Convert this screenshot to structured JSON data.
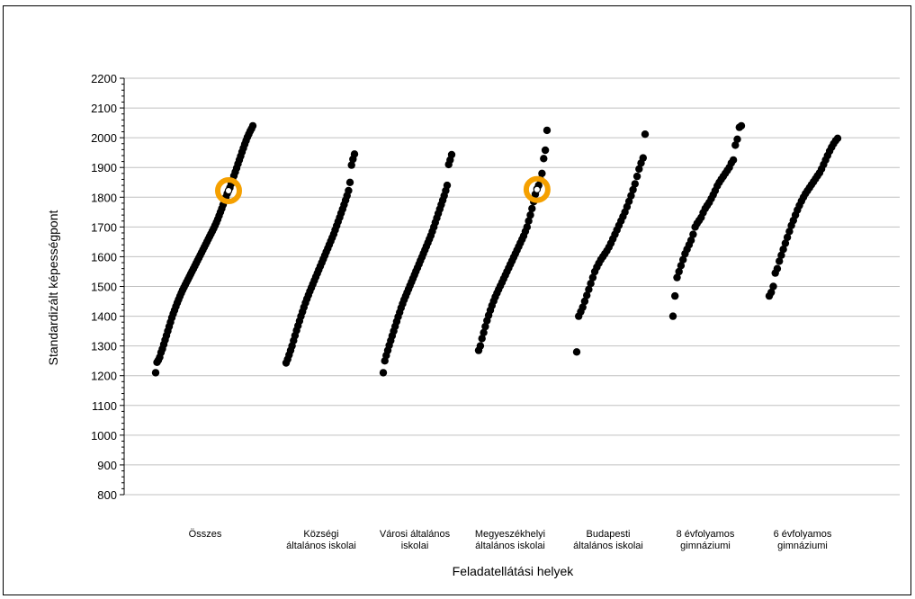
{
  "chart_data": {
    "type": "scatter",
    "title": "",
    "xlabel": "Feladatellátási helyek",
    "ylabel": "Standardizált képességpont",
    "ylim": [
      800,
      2200
    ],
    "yticks": [
      800,
      900,
      1000,
      1100,
      1200,
      1300,
      1400,
      1500,
      1600,
      1700,
      1800,
      1900,
      2000,
      2100,
      2200
    ],
    "grid": true,
    "legend": "none",
    "colors": {
      "points": "#000000",
      "highlight": "#f5a000",
      "grid": "#c0c0c0"
    },
    "categories": [
      {
        "label_lines": [
          "Összes"
        ]
      },
      {
        "label_lines": [
          "Községi",
          "általános iskolai"
        ]
      },
      {
        "label_lines": [
          "Városi általános",
          "iskolai"
        ]
      },
      {
        "label_lines": [
          "Megyeszékhelyi",
          "általános iskolai"
        ]
      },
      {
        "label_lines": [
          "Budapesti",
          "általános iskolai"
        ]
      },
      {
        "label_lines": [
          "8 évfolyamos",
          "gimnáziumi"
        ]
      },
      {
        "label_lines": [
          "6 évfolyamos",
          "gimnáziumi"
        ]
      }
    ],
    "series": [
      {
        "category_index": 0,
        "values": [
          1210,
          1245,
          1252,
          1262,
          1278,
          1290,
          1305,
          1320,
          1335,
          1350,
          1365,
          1380,
          1395,
          1408,
          1420,
          1433,
          1445,
          1456,
          1467,
          1478,
          1488,
          1497,
          1506,
          1515,
          1524,
          1533,
          1542,
          1551,
          1560,
          1569,
          1578,
          1587,
          1596,
          1605,
          1614,
          1623,
          1632,
          1641,
          1650,
          1659,
          1668,
          1677,
          1686,
          1695,
          1705,
          1715,
          1726,
          1738,
          1750,
          1762,
          1775,
          1788,
          1800,
          1812,
          1822,
          1832,
          1845,
          1858,
          1872,
          1885,
          1898,
          1912,
          1925,
          1938,
          1952,
          1965,
          1978,
          1990,
          2002,
          2012,
          2022,
          2030,
          2040
        ]
      },
      {
        "category_index": 1,
        "values": [
          1243,
          1255,
          1270,
          1285,
          1300,
          1318,
          1335,
          1352,
          1368,
          1384,
          1400,
          1415,
          1430,
          1445,
          1458,
          1471,
          1484,
          1496,
          1508,
          1520,
          1532,
          1544,
          1556,
          1568,
          1580,
          1592,
          1604,
          1616,
          1628,
          1640,
          1652,
          1664,
          1676,
          1690,
          1704,
          1718,
          1732,
          1746,
          1760,
          1775,
          1790,
          1805,
          1822,
          1850,
          1908,
          1928,
          1945
        ]
      },
      {
        "category_index": 2,
        "values": [
          1210,
          1250,
          1268,
          1285,
          1302,
          1318,
          1334,
          1350,
          1366,
          1382,
          1398,
          1413,
          1428,
          1442,
          1455,
          1467,
          1479,
          1491,
          1503,
          1515,
          1527,
          1539,
          1551,
          1563,
          1575,
          1587,
          1599,
          1611,
          1623,
          1635,
          1647,
          1659,
          1671,
          1685,
          1700,
          1715,
          1730,
          1745,
          1760,
          1775,
          1790,
          1805,
          1822,
          1840,
          1910,
          1925,
          1943
        ]
      },
      {
        "category_index": 3,
        "values": [
          1285,
          1300,
          1325,
          1345,
          1365,
          1385,
          1403,
          1420,
          1436,
          1451,
          1465,
          1478,
          1490,
          1502,
          1514,
          1526,
          1538,
          1550,
          1562,
          1574,
          1586,
          1598,
          1610,
          1622,
          1634,
          1646,
          1658,
          1670,
          1685,
          1700,
          1720,
          1740,
          1762,
          1785,
          1810,
          1828,
          1840,
          1860,
          1880,
          1930,
          1958,
          2025
        ]
      },
      {
        "category_index": 4,
        "values": [
          1280,
          1400,
          1415,
          1430,
          1450,
          1470,
          1490,
          1510,
          1530,
          1550,
          1565,
          1578,
          1590,
          1600,
          1610,
          1620,
          1632,
          1645,
          1660,
          1675,
          1690,
          1705,
          1720,
          1735,
          1750,
          1768,
          1786,
          1805,
          1825,
          1845,
          1870,
          1895,
          1915,
          1932,
          2012
        ]
      },
      {
        "category_index": 5,
        "values": [
          1400,
          1468,
          1530,
          1550,
          1570,
          1590,
          1610,
          1625,
          1640,
          1655,
          1675,
          1700,
          1712,
          1722,
          1732,
          1748,
          1762,
          1772,
          1782,
          1795,
          1808,
          1822,
          1838,
          1850,
          1860,
          1870,
          1880,
          1890,
          1900,
          1915,
          1925,
          1975,
          1995,
          2035,
          2040
        ]
      },
      {
        "category_index": 6,
        "values": [
          1468,
          1480,
          1500,
          1545,
          1560,
          1585,
          1605,
          1625,
          1645,
          1665,
          1685,
          1705,
          1722,
          1740,
          1757,
          1772,
          1787,
          1800,
          1812,
          1822,
          1832,
          1842,
          1852,
          1862,
          1872,
          1882,
          1895,
          1910,
          1925,
          1940,
          1955,
          1968,
          1980,
          1990,
          1998
        ]
      }
    ],
    "highlights": [
      {
        "category_index": 0,
        "value": 1822
      },
      {
        "category_index": 3,
        "value": 1826
      }
    ]
  }
}
